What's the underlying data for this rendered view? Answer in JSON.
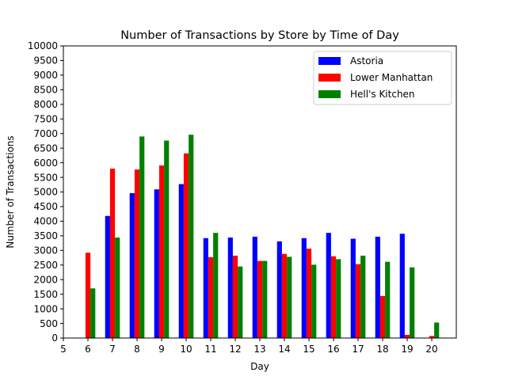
{
  "chart_data": {
    "type": "bar",
    "title": "Number of Transactions by Store by Time of Day",
    "xlabel": "Day",
    "ylabel": "Number of Transactions",
    "xlim": [
      5,
      21
    ],
    "ylim": [
      0,
      10000
    ],
    "xticks": [
      5,
      6,
      7,
      8,
      9,
      10,
      11,
      12,
      13,
      14,
      15,
      16,
      17,
      18,
      19,
      20
    ],
    "yticks": [
      0,
      500,
      1000,
      1500,
      2000,
      2500,
      3000,
      3500,
      4000,
      4500,
      5000,
      5500,
      6000,
      6500,
      7000,
      7500,
      8000,
      8500,
      9000,
      9500,
      10000
    ],
    "categories": [
      6,
      7,
      8,
      9,
      10,
      11,
      12,
      13,
      14,
      15,
      16,
      17,
      18,
      19,
      20
    ],
    "legend_position": "top-right",
    "grid": false,
    "series": [
      {
        "name": "Astoria",
        "color": "#0000ff",
        "values": [
          0,
          4180,
          4960,
          5090,
          5270,
          3420,
          3440,
          3470,
          3310,
          3420,
          3600,
          3400,
          3470,
          3570,
          0
        ]
      },
      {
        "name": "Lower Manhattan",
        "color": "#ff0000",
        "values": [
          2920,
          5800,
          5770,
          5910,
          6320,
          2770,
          2820,
          2640,
          2880,
          3060,
          2800,
          2530,
          1440,
          110,
          70
        ]
      },
      {
        "name": "Hell's Kitchen",
        "color": "#008000",
        "values": [
          1700,
          3440,
          6900,
          6760,
          6960,
          3600,
          2450,
          2640,
          2780,
          2510,
          2700,
          2820,
          2610,
          2420,
          530
        ]
      }
    ]
  }
}
